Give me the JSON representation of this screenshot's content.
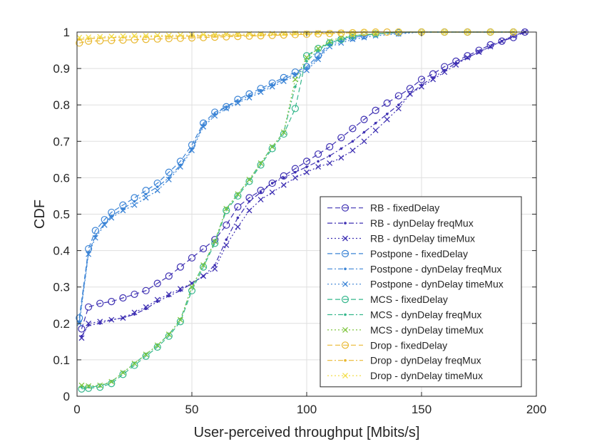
{
  "chart_data": {
    "type": "line",
    "title": "",
    "xlabel": "User-perceived throughput [Mbits/s]",
    "ylabel": "CDF",
    "xlim": [
      0,
      200
    ],
    "ylim": [
      0,
      1
    ],
    "grid": true,
    "legend_position": "bottom-right",
    "x_ticks": [
      0,
      50,
      100,
      150,
      200
    ],
    "y_ticks": [
      0,
      0.1,
      0.2,
      0.3,
      0.4,
      0.5,
      0.6,
      0.7,
      0.8,
      0.9,
      1
    ],
    "x_tick_labels": [
      "0",
      "50",
      "100",
      "150",
      "200"
    ],
    "y_tick_labels": [
      "0",
      "0.1",
      "0.2",
      "0.3",
      "0.4",
      "0.5",
      "0.6",
      "0.7",
      "0.8",
      "0.9",
      "1"
    ],
    "series": [
      {
        "name": "RB - fixedDelay",
        "color": "#3f31b3",
        "dash": "dashed",
        "marker": "circle",
        "x": [
          2,
          5,
          10,
          15,
          20,
          25,
          30,
          35,
          40,
          45,
          50,
          55,
          60,
          65,
          70,
          75,
          80,
          85,
          90,
          95,
          100,
          105,
          110,
          115,
          120,
          125,
          130,
          135,
          140,
          145,
          150,
          155,
          160,
          165,
          170,
          175,
          180,
          185,
          190,
          195
        ],
        "y": [
          0.185,
          0.245,
          0.255,
          0.26,
          0.27,
          0.28,
          0.29,
          0.31,
          0.33,
          0.355,
          0.38,
          0.405,
          0.43,
          0.47,
          0.52,
          0.545,
          0.565,
          0.585,
          0.605,
          0.625,
          0.645,
          0.665,
          0.685,
          0.71,
          0.735,
          0.76,
          0.785,
          0.805,
          0.825,
          0.845,
          0.87,
          0.885,
          0.905,
          0.92,
          0.935,
          0.95,
          0.965,
          0.975,
          0.985,
          1.0
        ]
      },
      {
        "name": "RB - dynDelay freqMux",
        "color": "#3f31b3",
        "dash": "dashdot",
        "marker": "dot",
        "x": [
          2,
          5,
          10,
          15,
          20,
          25,
          30,
          35,
          40,
          45,
          50,
          55,
          60,
          65,
          70,
          75,
          80,
          85,
          90,
          95,
          100,
          105,
          110,
          115,
          120,
          125,
          130,
          135,
          140,
          145,
          150,
          155,
          160,
          165,
          170,
          175,
          180,
          185,
          190,
          195
        ],
        "y": [
          0.165,
          0.195,
          0.2,
          0.21,
          0.215,
          0.225,
          0.24,
          0.26,
          0.275,
          0.29,
          0.31,
          0.33,
          0.36,
          0.43,
          0.49,
          0.535,
          0.56,
          0.585,
          0.6,
          0.615,
          0.63,
          0.645,
          0.66,
          0.68,
          0.7,
          0.725,
          0.75,
          0.775,
          0.8,
          0.83,
          0.855,
          0.875,
          0.895,
          0.915,
          0.93,
          0.945,
          0.96,
          0.975,
          0.99,
          1.0
        ]
      },
      {
        "name": "RB - dynDelay timeMux",
        "color": "#3f31b3",
        "dash": "dotted",
        "marker": "x",
        "x": [
          2,
          5,
          10,
          15,
          20,
          25,
          30,
          35,
          40,
          45,
          50,
          55,
          60,
          65,
          70,
          75,
          80,
          85,
          90,
          95,
          100,
          105,
          110,
          115,
          120,
          125,
          130,
          135,
          140,
          145,
          150,
          155,
          160,
          165,
          170,
          175,
          180,
          185,
          190,
          195
        ],
        "y": [
          0.16,
          0.2,
          0.205,
          0.21,
          0.215,
          0.23,
          0.245,
          0.265,
          0.28,
          0.295,
          0.31,
          0.33,
          0.35,
          0.415,
          0.465,
          0.51,
          0.54,
          0.56,
          0.58,
          0.6,
          0.615,
          0.63,
          0.64,
          0.655,
          0.675,
          0.7,
          0.73,
          0.76,
          0.79,
          0.83,
          0.85,
          0.87,
          0.89,
          0.91,
          0.93,
          0.945,
          0.96,
          0.975,
          0.99,
          1.0
        ]
      },
      {
        "name": "Postpone - fixedDelay",
        "color": "#3b84d6",
        "dash": "dashed",
        "marker": "circle",
        "x": [
          1,
          5,
          8,
          12,
          15,
          20,
          25,
          30,
          35,
          40,
          45,
          50,
          55,
          60,
          65,
          70,
          75,
          80,
          85,
          90,
          95,
          100,
          105,
          110,
          115,
          120,
          125,
          130,
          140,
          150,
          160,
          170,
          180,
          190
        ],
        "y": [
          0.215,
          0.405,
          0.455,
          0.485,
          0.505,
          0.525,
          0.545,
          0.565,
          0.585,
          0.615,
          0.645,
          0.69,
          0.75,
          0.78,
          0.795,
          0.815,
          0.83,
          0.845,
          0.86,
          0.875,
          0.89,
          0.905,
          0.935,
          0.97,
          0.98,
          0.985,
          0.99,
          0.995,
          0.998,
          1.0,
          1.0,
          1.0,
          1.0,
          1.0
        ]
      },
      {
        "name": "Postpone - dynDelay freqMux",
        "color": "#3b84d6",
        "dash": "dashdot",
        "marker": "dot",
        "x": [
          1,
          5,
          8,
          12,
          15,
          20,
          25,
          30,
          35,
          40,
          45,
          50,
          55,
          60,
          65,
          70,
          75,
          80,
          85,
          90,
          95,
          100,
          105,
          110,
          115,
          120,
          125,
          130,
          140,
          150,
          160,
          170,
          180,
          190
        ],
        "y": [
          0.205,
          0.395,
          0.44,
          0.475,
          0.495,
          0.515,
          0.535,
          0.555,
          0.575,
          0.6,
          0.635,
          0.68,
          0.745,
          0.775,
          0.795,
          0.81,
          0.825,
          0.84,
          0.855,
          0.87,
          0.885,
          0.9,
          0.93,
          0.965,
          0.975,
          0.985,
          0.99,
          0.995,
          0.998,
          1.0,
          1.0,
          1.0,
          1.0,
          1.0
        ]
      },
      {
        "name": "Postpone - dynDelay timeMux",
        "color": "#3b84d6",
        "dash": "dotted",
        "marker": "x",
        "x": [
          1,
          5,
          8,
          12,
          15,
          20,
          25,
          30,
          35,
          40,
          45,
          50,
          55,
          60,
          65,
          70,
          75,
          80,
          85,
          90,
          95,
          100,
          105,
          110,
          115,
          120,
          125,
          130,
          140,
          150,
          160,
          170,
          180,
          190
        ],
        "y": [
          0.2,
          0.39,
          0.435,
          0.47,
          0.49,
          0.51,
          0.525,
          0.545,
          0.565,
          0.595,
          0.63,
          0.675,
          0.74,
          0.77,
          0.79,
          0.805,
          0.82,
          0.835,
          0.85,
          0.865,
          0.88,
          0.895,
          0.925,
          0.96,
          0.97,
          0.98,
          0.985,
          0.99,
          0.995,
          1.0,
          1.0,
          1.0,
          1.0,
          1.0
        ]
      },
      {
        "name": "MCS - fixedDelay",
        "color": "#35b78c",
        "dash": "dashed",
        "marker": "circle",
        "x": [
          2,
          5,
          10,
          15,
          20,
          25,
          30,
          35,
          40,
          45,
          50,
          55,
          60,
          65,
          70,
          75,
          80,
          85,
          90,
          95,
          100,
          105,
          110,
          115,
          120,
          130,
          140,
          150,
          160,
          170,
          180,
          190
        ],
        "y": [
          0.02,
          0.022,
          0.025,
          0.035,
          0.06,
          0.085,
          0.11,
          0.135,
          0.165,
          0.205,
          0.29,
          0.355,
          0.42,
          0.51,
          0.55,
          0.59,
          0.635,
          0.68,
          0.72,
          0.79,
          0.935,
          0.955,
          0.97,
          0.98,
          0.99,
          0.995,
          1.0,
          1.0,
          1.0,
          1.0,
          1.0,
          1.0
        ]
      },
      {
        "name": "MCS - dynDelay freqMux",
        "color": "#35b78c",
        "dash": "dashdot",
        "marker": "dot",
        "x": [
          2,
          5,
          10,
          15,
          20,
          25,
          30,
          35,
          40,
          45,
          50,
          55,
          60,
          65,
          70,
          75,
          80,
          85,
          90,
          95,
          100,
          105,
          110,
          115,
          120,
          130,
          140,
          150,
          160,
          170,
          180,
          190
        ],
        "y": [
          0.025,
          0.025,
          0.028,
          0.04,
          0.065,
          0.09,
          0.115,
          0.14,
          0.17,
          0.21,
          0.3,
          0.36,
          0.425,
          0.515,
          0.555,
          0.595,
          0.64,
          0.685,
          0.725,
          0.85,
          0.92,
          0.95,
          0.97,
          0.98,
          0.99,
          0.995,
          1.0,
          1.0,
          1.0,
          1.0,
          1.0,
          1.0
        ]
      },
      {
        "name": "MCS - dynDelay timeMux",
        "color": "#7fc63f",
        "dash": "dotted",
        "marker": "x",
        "x": [
          2,
          5,
          10,
          15,
          20,
          25,
          30,
          35,
          40,
          45,
          50,
          55,
          60,
          65,
          70,
          75,
          80,
          85,
          90,
          95,
          100,
          105,
          110,
          115,
          120,
          130,
          140,
          150,
          160,
          170,
          180,
          190
        ],
        "y": [
          0.03,
          0.028,
          0.03,
          0.04,
          0.065,
          0.09,
          0.115,
          0.14,
          0.17,
          0.21,
          0.3,
          0.36,
          0.425,
          0.515,
          0.555,
          0.595,
          0.64,
          0.685,
          0.725,
          0.87,
          0.93,
          0.955,
          0.975,
          0.985,
          0.99,
          0.995,
          1.0,
          1.0,
          1.0,
          1.0,
          1.0,
          1.0
        ]
      },
      {
        "name": "Drop - fixedDelay",
        "color": "#e9b830",
        "dash": "dashed",
        "marker": "circle",
        "x": [
          1,
          5,
          10,
          15,
          20,
          25,
          30,
          35,
          40,
          45,
          50,
          55,
          60,
          65,
          70,
          75,
          80,
          85,
          90,
          95,
          100,
          105,
          110,
          115,
          120,
          125,
          130,
          135,
          140,
          150,
          160,
          170,
          180,
          190
        ],
        "y": [
          0.97,
          0.975,
          0.976,
          0.977,
          0.978,
          0.979,
          0.98,
          0.981,
          0.982,
          0.983,
          0.984,
          0.985,
          0.986,
          0.987,
          0.988,
          0.989,
          0.99,
          0.991,
          0.992,
          0.993,
          0.994,
          0.995,
          0.996,
          0.997,
          0.998,
          0.999,
          1.0,
          1.0,
          1.0,
          1.0,
          1.0,
          1.0,
          1.0,
          1.0
        ]
      },
      {
        "name": "Drop - dynDelay freqMux",
        "color": "#e9b830",
        "dash": "dashdot",
        "marker": "dot",
        "x": [
          1,
          5,
          10,
          20,
          30,
          40,
          50,
          60,
          70,
          80,
          90,
          100,
          110,
          120,
          130,
          140,
          150,
          160,
          170,
          180,
          190
        ],
        "y": [
          0.98,
          0.982,
          0.984,
          0.986,
          0.987,
          0.988,
          0.989,
          0.99,
          0.991,
          0.992,
          0.994,
          0.996,
          0.998,
          0.999,
          1.0,
          1.0,
          1.0,
          1.0,
          1.0,
          1.0,
          1.0
        ]
      },
      {
        "name": "Drop - dynDelay timeMux",
        "color": "#f3de4a",
        "dash": "dotted",
        "marker": "x",
        "x": [
          1,
          5,
          10,
          15,
          20,
          25,
          30,
          35,
          40,
          45,
          50,
          55,
          60,
          65,
          70,
          75,
          80,
          85,
          90,
          95,
          100,
          105,
          110,
          115,
          120,
          125,
          130,
          140,
          150,
          160,
          170,
          180,
          190
        ],
        "y": [
          0.985,
          0.986,
          0.987,
          0.988,
          0.989,
          0.99,
          0.99,
          0.991,
          0.991,
          0.992,
          0.992,
          0.993,
          0.993,
          0.994,
          0.994,
          0.995,
          0.995,
          0.996,
          0.996,
          0.997,
          0.997,
          0.998,
          0.998,
          0.999,
          0.999,
          1.0,
          1.0,
          1.0,
          1.0,
          1.0,
          1.0,
          1.0,
          1.0
        ]
      }
    ]
  }
}
